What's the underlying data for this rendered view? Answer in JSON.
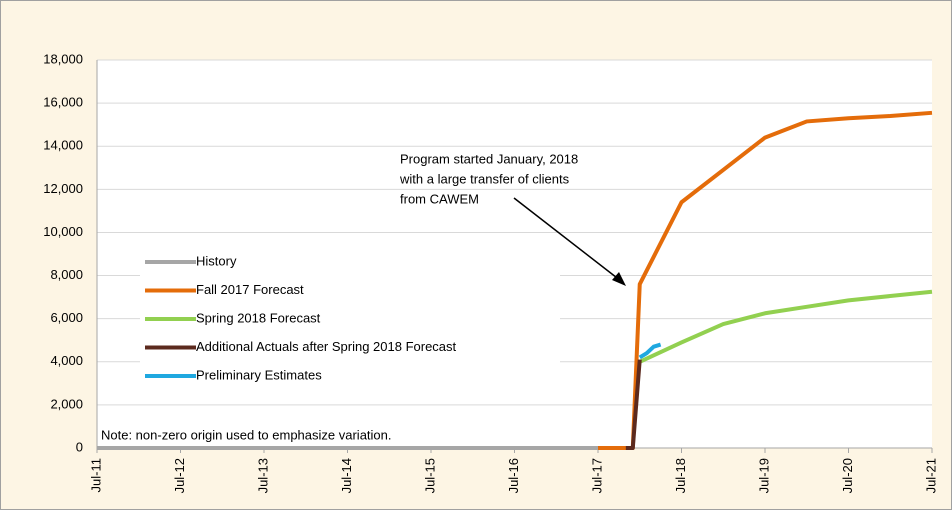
{
  "chart_data": {
    "type": "line",
    "annotation": [
      "Program started January, 2018",
      "with a large transfer of clients",
      "from CAWEM"
    ],
    "note": "Note: non-zero origin used to emphasize variation.",
    "xlim": [
      "Jul-11",
      "Jul-21"
    ],
    "xticks": [
      "Jul-11",
      "Jul-12",
      "Jul-13",
      "Jul-14",
      "Jul-15",
      "Jul-16",
      "Jul-17",
      "Jul-18",
      "Jul-19",
      "Jul-20",
      "Jul-21"
    ],
    "ylim": [
      0,
      18000
    ],
    "yticks": [
      0,
      {
        "value": 2000,
        "label": "2,000"
      },
      {
        "value": 4000,
        "label": "4,000"
      },
      {
        "value": 6000,
        "label": "6,000"
      },
      {
        "value": 8000,
        "label": "8,000"
      },
      {
        "value": 10000,
        "label": "10,000"
      },
      {
        "value": 12000,
        "label": "12,000"
      },
      {
        "value": 14000,
        "label": "14,000"
      },
      {
        "value": 16000,
        "label": "16,000"
      },
      {
        "value": 18000,
        "label": "18,000"
      }
    ],
    "grid": true,
    "series": [
      {
        "name": "History",
        "color": "#a6a6a6",
        "x": [
          "Jul-11",
          "Dec-17"
        ],
        "values": [
          0,
          0
        ]
      },
      {
        "name": "Fall 2017 Forecast",
        "color": "#e46c0a",
        "x": [
          "Jul-17",
          "Dec-17",
          "Jan-18",
          "Jul-18",
          "Jan-19",
          "Jul-19",
          "Jan-20",
          "Jul-20",
          "Jan-21",
          "Jul-21"
        ],
        "values": [
          0,
          0,
          7600,
          11400,
          12900,
          14400,
          15150,
          15300,
          15400,
          15550
        ]
      },
      {
        "name": "Spring 2018 Forecast",
        "color": "#92d050",
        "x": [
          "Jan-18",
          "Jul-18",
          "Jan-19",
          "Jul-19",
          "Jan-20",
          "Jul-20",
          "Jan-21",
          "Jul-21"
        ],
        "values": [
          4000,
          4900,
          5750,
          6250,
          6550,
          6850,
          7050,
          7250
        ]
      },
      {
        "name": "Additional Actuals after Spring 2018 Forecast",
        "color": "#5c2a1e",
        "x": [
          "Nov-17",
          "Dec-17",
          "Jan-18"
        ],
        "values": [
          0,
          0,
          4100
        ]
      },
      {
        "name": "Preliminary Estimates",
        "color": "#1fa8e0",
        "x": [
          "Jan-18",
          "Feb-18",
          "Mar-18",
          "Apr-18"
        ],
        "values": [
          4200,
          4400,
          4700,
          4800
        ]
      }
    ]
  }
}
